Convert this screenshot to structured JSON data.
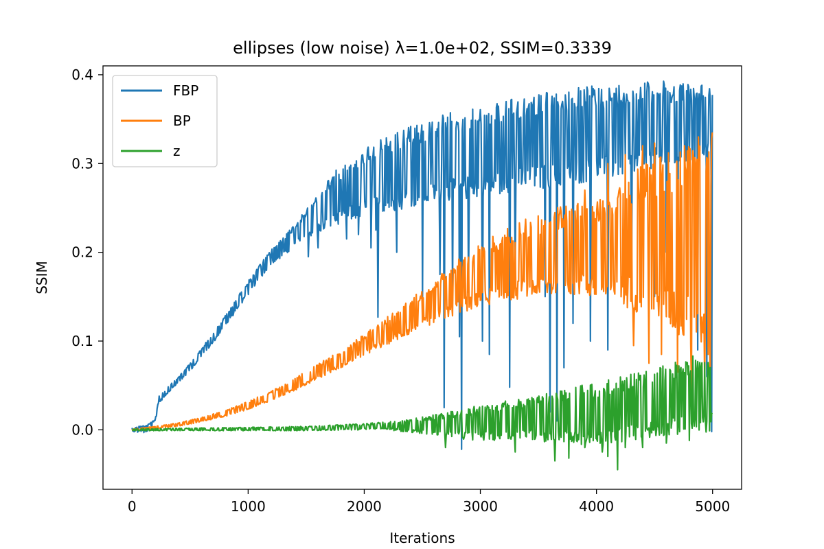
{
  "chart_data": {
    "type": "line",
    "title": "ellipses (low noise) λ=1.0e+02, SSIM=0.3339",
    "xlabel": "Iterations",
    "ylabel": "SSIM",
    "xlim": [
      -250,
      5250
    ],
    "ylim": [
      -0.067,
      0.41
    ],
    "xticks": [
      0,
      1000,
      2000,
      3000,
      4000,
      5000
    ],
    "xtick_labels": [
      "0",
      "1000",
      "2000",
      "3000",
      "4000",
      "5000"
    ],
    "yticks": [
      0.0,
      0.1,
      0.2,
      0.3,
      0.4
    ],
    "ytick_labels": [
      "0.0",
      "0.1",
      "0.2",
      "0.3",
      "0.4"
    ],
    "grid": false,
    "legend_position": "top-left",
    "series": [
      {
        "name": "FBP",
        "color": "#1f77b4",
        "band_x": [
          0,
          100,
          200,
          220,
          300,
          400,
          500,
          600,
          700,
          800,
          900,
          1000,
          1100,
          1200,
          1300,
          1400,
          1500,
          1600,
          1700,
          1800,
          1900,
          2000,
          2200,
          2400,
          2600,
          2800,
          3000,
          3200,
          3400,
          3600,
          3800,
          4000,
          4200,
          4400,
          4600,
          4800,
          5000
        ],
        "band_upper": [
          0.003,
          0.005,
          0.012,
          0.038,
          0.047,
          0.06,
          0.075,
          0.092,
          0.11,
          0.128,
          0.148,
          0.168,
          0.186,
          0.203,
          0.218,
          0.232,
          0.248,
          0.268,
          0.285,
          0.298,
          0.308,
          0.318,
          0.33,
          0.342,
          0.352,
          0.36,
          0.366,
          0.372,
          0.378,
          0.382,
          0.386,
          0.388,
          0.39,
          0.392,
          0.393,
          0.392,
          0.39
        ],
        "band_lower": [
          -0.002,
          -0.004,
          0.0,
          0.028,
          0.04,
          0.053,
          0.066,
          0.082,
          0.098,
          0.116,
          0.134,
          0.152,
          0.17,
          0.185,
          0.195,
          0.205,
          0.215,
          0.222,
          0.225,
          0.23,
          0.236,
          0.24,
          0.245,
          0.25,
          0.255,
          0.258,
          0.262,
          0.266,
          0.27,
          0.272,
          0.276,
          0.28,
          0.285,
          0.29,
          0.295,
          0.3,
          0.31
        ],
        "spikes": [
          [
            1520,
            0.195
          ],
          [
            1600,
            0.205
          ],
          [
            1850,
            0.215
          ],
          [
            1950,
            0.22
          ],
          [
            2060,
            0.205
          ],
          [
            2100,
            0.225
          ],
          [
            2120,
            0.127
          ],
          [
            2280,
            0.2
          ],
          [
            2500,
            0.145
          ],
          [
            2650,
            0.175
          ],
          [
            2690,
            0.025
          ],
          [
            2760,
            0.145
          ],
          [
            2820,
            0.105
          ],
          [
            2840,
            -0.022
          ],
          [
            2900,
            0.155
          ],
          [
            3020,
            0.1
          ],
          [
            3080,
            0.085
          ],
          [
            3250,
            0.048
          ],
          [
            3300,
            0.175
          ],
          [
            3560,
            0.15
          ],
          [
            3600,
            0.02
          ],
          [
            3660,
            0.01
          ],
          [
            3720,
            0.07
          ],
          [
            3800,
            0.12
          ],
          [
            3950,
            0.1
          ],
          [
            4100,
            0.09
          ],
          [
            4300,
            0.16
          ],
          [
            4500,
            0.15
          ],
          [
            4600,
            0.2
          ],
          [
            4700,
            0.11
          ],
          [
            4870,
            0.09
          ],
          [
            4950,
            0.06
          ],
          [
            4990,
            -0.002
          ]
        ]
      },
      {
        "name": "BP",
        "color": "#ff7f0e",
        "band_x": [
          0,
          200,
          400,
          600,
          800,
          1000,
          1200,
          1400,
          1600,
          1800,
          2000,
          2200,
          2400,
          2600,
          2800,
          3000,
          3200,
          3400,
          3600,
          3800,
          4000,
          4200,
          4400,
          4600,
          4800,
          5000
        ],
        "band_upper": [
          0.001,
          0.004,
          0.008,
          0.014,
          0.022,
          0.032,
          0.044,
          0.058,
          0.074,
          0.09,
          0.108,
          0.128,
          0.148,
          0.17,
          0.192,
          0.21,
          0.225,
          0.238,
          0.248,
          0.256,
          0.262,
          0.28,
          0.3,
          0.315,
          0.325,
          0.335
        ],
        "band_lower": [
          -0.001,
          0.001,
          0.004,
          0.009,
          0.015,
          0.023,
          0.033,
          0.044,
          0.057,
          0.07,
          0.083,
          0.096,
          0.108,
          0.12,
          0.13,
          0.138,
          0.145,
          0.148,
          0.15,
          0.152,
          0.148,
          0.14,
          0.13,
          0.115,
          0.095,
          0.08
        ],
        "spikes": [
          [
            3900,
            0.27
          ],
          [
            4100,
            0.3
          ],
          [
            4250,
            0.31
          ],
          [
            4320,
            0.095
          ],
          [
            4400,
            0.32
          ],
          [
            4450,
            0.075
          ],
          [
            4500,
            0.323
          ],
          [
            4560,
            0.085
          ],
          [
            4620,
            0.312
          ],
          [
            4700,
            0.065
          ],
          [
            4760,
            0.32
          ],
          [
            4820,
            0.045
          ],
          [
            4880,
            0.33
          ],
          [
            4930,
            0.05
          ],
          [
            4980,
            0.035
          ],
          [
            5000,
            0.335
          ]
        ]
      },
      {
        "name": "z",
        "color": "#2ca02c",
        "band_x": [
          0,
          500,
          1000,
          1500,
          2000,
          2200,
          2400,
          2600,
          2800,
          3000,
          3200,
          3400,
          3600,
          3800,
          4000,
          4200,
          4400,
          4600,
          4800,
          5000
        ],
        "band_upper": [
          0.001,
          0.002,
          0.003,
          0.004,
          0.007,
          0.009,
          0.012,
          0.017,
          0.022,
          0.028,
          0.032,
          0.036,
          0.042,
          0.048,
          0.054,
          0.06,
          0.066,
          0.073,
          0.082,
          0.092
        ],
        "band_lower": [
          -0.001,
          -0.001,
          -0.001,
          -0.001,
          0.0,
          0.0,
          -0.003,
          -0.007,
          -0.01,
          -0.012,
          -0.012,
          -0.01,
          -0.015,
          -0.018,
          -0.02,
          -0.015,
          -0.01,
          -0.008,
          -0.005,
          -0.003
        ],
        "spikes": [
          [
            2700,
            -0.02
          ],
          [
            3300,
            -0.025
          ],
          [
            3640,
            -0.035
          ],
          [
            3760,
            -0.032
          ],
          [
            3900,
            -0.02
          ],
          [
            4050,
            -0.025
          ],
          [
            4100,
            -0.03
          ],
          [
            4180,
            -0.045
          ],
          [
            4250,
            -0.02
          ],
          [
            4400,
            -0.02
          ],
          [
            4600,
            -0.015
          ],
          [
            4800,
            -0.012
          ]
        ]
      }
    ]
  }
}
